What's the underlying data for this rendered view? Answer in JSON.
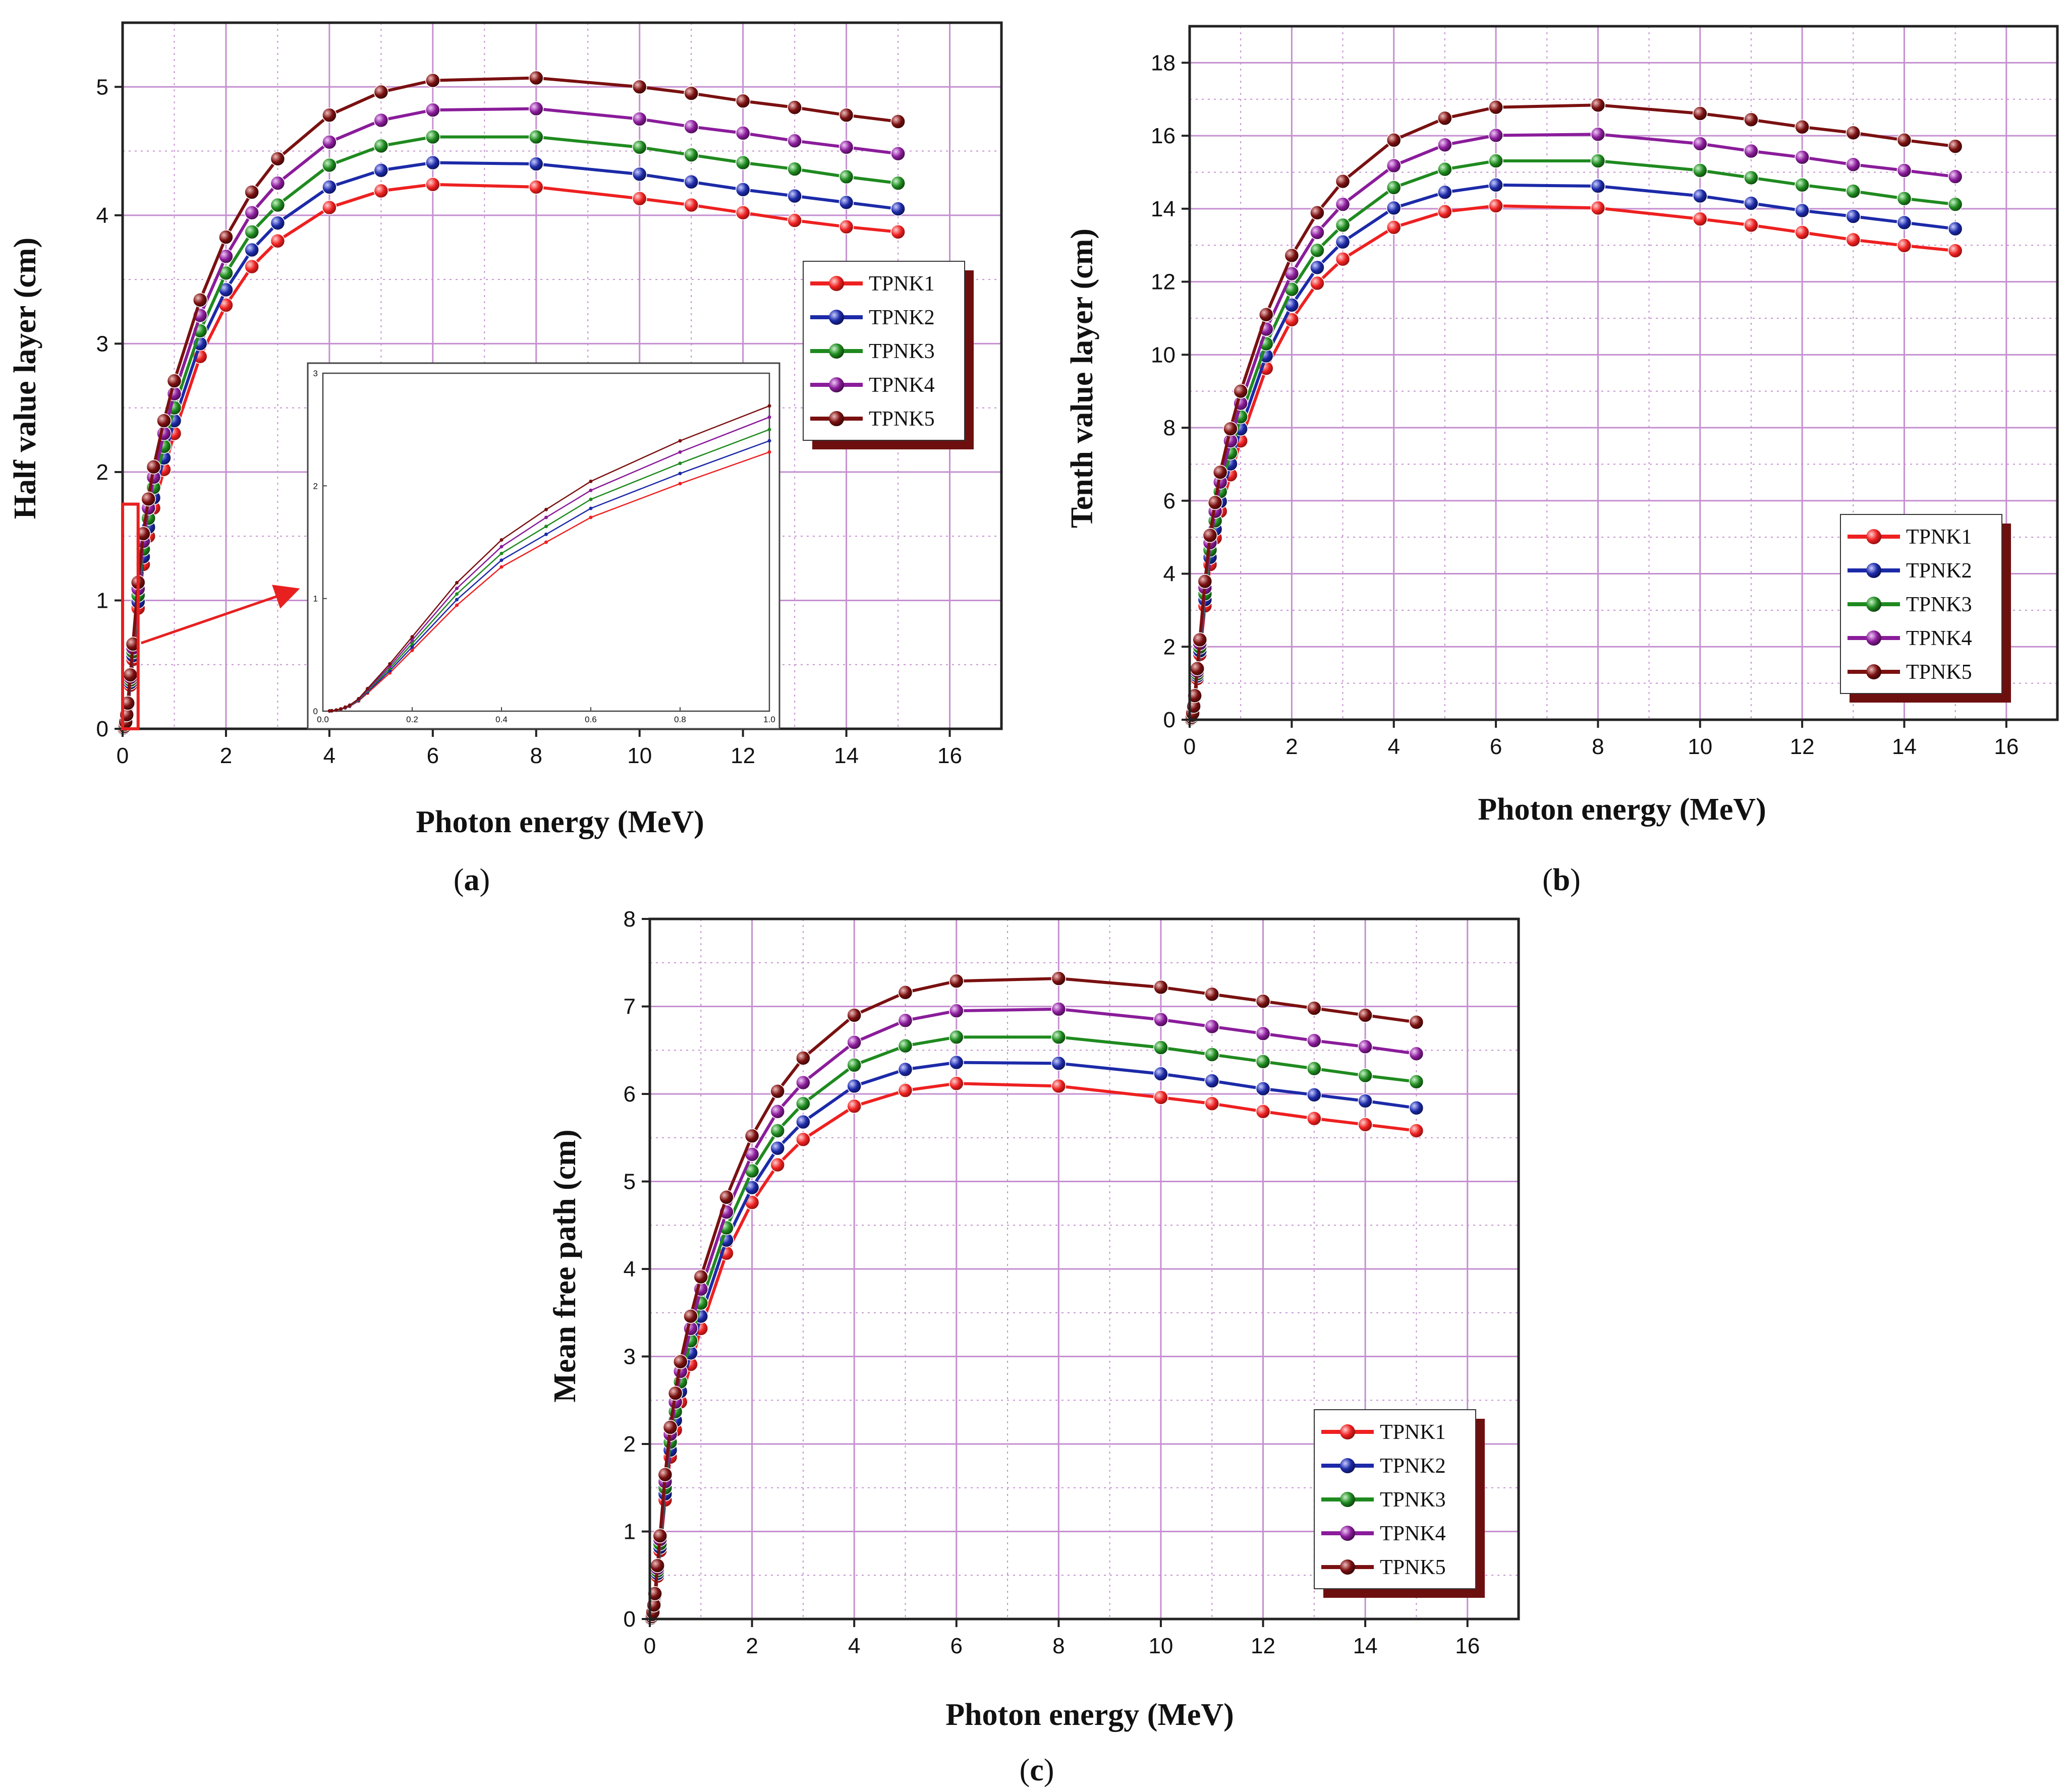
{
  "colors": {
    "TPNK1": "#ee2020",
    "TPNK2": "#1c2aa8",
    "TPNK3": "#1f8a1f",
    "TPNK4": "#8a1c9a",
    "TPNK5": "#7a1010",
    "grid": "#c58fd0",
    "highlight": "#e82020",
    "legend_shadow": "#6e0f0f"
  },
  "chart_data": [
    {
      "id": "a",
      "type": "line",
      "panel_label": "a",
      "xlabel": "Photon energy (MeV)",
      "ylabel": "Half value layer (cm)",
      "xlim": [
        0,
        17
      ],
      "ylim": [
        0,
        5.5
      ],
      "xticks": [
        0,
        2,
        4,
        6,
        8,
        10,
        12,
        14,
        16
      ],
      "yticks": [
        0,
        1,
        2,
        3,
        4,
        5
      ],
      "grid": true,
      "legend_position": "right-middle",
      "x": [
        0.015,
        0.02,
        0.03,
        0.04,
        0.05,
        0.06,
        0.08,
        0.1,
        0.15,
        0.2,
        0.3,
        0.4,
        0.5,
        0.6,
        0.8,
        1.0,
        1.5,
        2,
        2.5,
        3,
        4,
        5,
        6,
        8,
        10,
        11,
        12,
        13,
        14,
        15
      ],
      "series": [
        {
          "name": "TPNK1",
          "values": [
            0.0015,
            0.003,
            0.008,
            0.016,
            0.028,
            0.042,
            0.09,
            0.16,
            0.34,
            0.54,
            0.94,
            1.28,
            1.5,
            1.72,
            2.02,
            2.3,
            2.9,
            3.3,
            3.6,
            3.8,
            4.06,
            4.19,
            4.24,
            4.22,
            4.13,
            4.08,
            4.02,
            3.96,
            3.91,
            3.87
          ]
        },
        {
          "name": "TPNK2",
          "values": [
            0.0016,
            0.0032,
            0.0085,
            0.017,
            0.03,
            0.045,
            0.095,
            0.17,
            0.36,
            0.57,
            0.99,
            1.34,
            1.57,
            1.8,
            2.11,
            2.4,
            3.0,
            3.42,
            3.73,
            3.94,
            4.22,
            4.35,
            4.41,
            4.4,
            4.32,
            4.26,
            4.2,
            4.15,
            4.1,
            4.05
          ]
        },
        {
          "name": "TPNK3",
          "values": [
            0.0017,
            0.0034,
            0.009,
            0.018,
            0.032,
            0.048,
            0.1,
            0.18,
            0.38,
            0.6,
            1.04,
            1.4,
            1.64,
            1.88,
            2.2,
            2.5,
            3.1,
            3.55,
            3.87,
            4.08,
            4.39,
            4.54,
            4.61,
            4.61,
            4.53,
            4.47,
            4.41,
            4.36,
            4.3,
            4.25
          ]
        },
        {
          "name": "TPNK4",
          "values": [
            0.0018,
            0.0036,
            0.0095,
            0.019,
            0.034,
            0.05,
            0.105,
            0.19,
            0.4,
            0.63,
            1.09,
            1.46,
            1.72,
            1.96,
            2.3,
            2.61,
            3.22,
            3.68,
            4.02,
            4.25,
            4.57,
            4.74,
            4.82,
            4.83,
            4.75,
            4.69,
            4.64,
            4.58,
            4.53,
            4.48
          ]
        },
        {
          "name": "TPNK5",
          "values": [
            0.0019,
            0.0038,
            0.01,
            0.02,
            0.036,
            0.053,
            0.11,
            0.2,
            0.42,
            0.66,
            1.14,
            1.52,
            1.79,
            2.04,
            2.4,
            2.71,
            3.34,
            3.83,
            4.18,
            4.44,
            4.78,
            4.96,
            5.05,
            5.07,
            5.0,
            4.95,
            4.89,
            4.84,
            4.78,
            4.73
          ]
        }
      ],
      "inset": {
        "xlim": [
          0,
          1.0
        ],
        "ylim": [
          0,
          3
        ],
        "xtick_labels": [
          "0.0",
          "0.2",
          "0.4",
          "0.6",
          "0.8",
          "1.0"
        ],
        "ytick_labels": [
          "0",
          "1",
          "2",
          "3"
        ],
        "highlight_region": {
          "x": [
            0,
            0.3
          ],
          "y": [
            0,
            1.75
          ]
        }
      }
    },
    {
      "id": "b",
      "type": "line",
      "panel_label": "b",
      "xlabel": "Photon energy (MeV)",
      "ylabel": "Tenth value layer (cm)",
      "xlim": [
        0,
        17
      ],
      "ylim": [
        0,
        19
      ],
      "xticks": [
        0,
        2,
        4,
        6,
        8,
        10,
        12,
        14,
        16
      ],
      "yticks": [
        0,
        2,
        4,
        6,
        8,
        10,
        12,
        14,
        16,
        18
      ],
      "grid": true,
      "legend_position": "bottom-right",
      "x": [
        0.015,
        0.02,
        0.03,
        0.04,
        0.05,
        0.06,
        0.08,
        0.1,
        0.15,
        0.2,
        0.3,
        0.4,
        0.5,
        0.6,
        0.8,
        1.0,
        1.5,
        2,
        2.5,
        3,
        4,
        5,
        6,
        8,
        10,
        11,
        12,
        13,
        14,
        15
      ],
      "series": [
        {
          "name": "TPNK1",
          "values": [
            0.005,
            0.01,
            0.027,
            0.053,
            0.09,
            0.14,
            0.3,
            0.53,
            1.13,
            1.79,
            3.12,
            4.25,
            4.98,
            5.71,
            6.71,
            7.64,
            9.63,
            10.96,
            11.96,
            12.62,
            13.49,
            13.92,
            14.08,
            14.02,
            13.72,
            13.55,
            13.35,
            13.15,
            12.99,
            12.85
          ]
        },
        {
          "name": "TPNK2",
          "values": [
            0.005,
            0.011,
            0.028,
            0.056,
            0.1,
            0.15,
            0.32,
            0.56,
            1.2,
            1.89,
            3.29,
            4.45,
            5.22,
            5.98,
            7.01,
            7.97,
            9.97,
            11.36,
            12.39,
            13.09,
            14.02,
            14.45,
            14.65,
            14.62,
            14.35,
            14.15,
            13.95,
            13.79,
            13.62,
            13.45
          ]
        },
        {
          "name": "TPNK3",
          "values": [
            0.006,
            0.011,
            0.03,
            0.06,
            0.106,
            0.16,
            0.33,
            0.6,
            1.26,
            1.99,
            3.45,
            4.65,
            5.45,
            6.25,
            7.31,
            8.3,
            10.3,
            11.79,
            12.86,
            13.55,
            14.58,
            15.08,
            15.31,
            15.31,
            15.05,
            14.85,
            14.65,
            14.48,
            14.28,
            14.12
          ]
        },
        {
          "name": "TPNK4",
          "values": [
            0.006,
            0.012,
            0.032,
            0.063,
            0.113,
            0.17,
            0.35,
            0.63,
            1.33,
            2.09,
            3.62,
            4.85,
            5.71,
            6.51,
            7.64,
            8.67,
            10.7,
            12.22,
            13.35,
            14.12,
            15.18,
            15.75,
            16.01,
            16.04,
            15.78,
            15.58,
            15.41,
            15.21,
            15.05,
            14.88
          ]
        },
        {
          "name": "TPNK5",
          "values": [
            0.006,
            0.013,
            0.033,
            0.066,
            0.12,
            0.18,
            0.37,
            0.66,
            1.4,
            2.19,
            3.79,
            5.05,
            5.95,
            6.78,
            7.97,
            9.0,
            11.1,
            12.72,
            13.89,
            14.75,
            15.88,
            16.48,
            16.78,
            16.84,
            16.61,
            16.44,
            16.24,
            16.08,
            15.88,
            15.71
          ]
        }
      ]
    },
    {
      "id": "c",
      "type": "line",
      "panel_label": "c",
      "xlabel": "Photon energy (MeV)",
      "ylabel": "Mean free path (cm)",
      "xlim": [
        0,
        17
      ],
      "ylim": [
        0,
        8
      ],
      "xticks": [
        0,
        2,
        4,
        6,
        8,
        10,
        12,
        14,
        16
      ],
      "yticks": [
        0,
        1,
        2,
        3,
        4,
        5,
        6,
        7,
        8
      ],
      "grid": true,
      "legend_position": "bottom-right",
      "x": [
        0.015,
        0.02,
        0.03,
        0.04,
        0.05,
        0.06,
        0.08,
        0.1,
        0.15,
        0.2,
        0.3,
        0.4,
        0.5,
        0.6,
        0.8,
        1.0,
        1.5,
        2,
        2.5,
        3,
        4,
        5,
        6,
        8,
        10,
        11,
        12,
        13,
        14,
        15
      ],
      "series": [
        {
          "name": "TPNK1",
          "values": [
            0.002,
            0.004,
            0.012,
            0.023,
            0.04,
            0.06,
            0.13,
            0.23,
            0.49,
            0.78,
            1.36,
            1.85,
            2.16,
            2.48,
            2.91,
            3.32,
            4.18,
            4.76,
            5.19,
            5.48,
            5.86,
            6.04,
            6.12,
            6.09,
            5.96,
            5.89,
            5.8,
            5.72,
            5.65,
            5.58
          ]
        },
        {
          "name": "TPNK2",
          "values": [
            0.002,
            0.005,
            0.012,
            0.024,
            0.043,
            0.065,
            0.14,
            0.24,
            0.52,
            0.82,
            1.43,
            1.93,
            2.27,
            2.6,
            3.04,
            3.46,
            4.33,
            4.93,
            5.38,
            5.68,
            6.09,
            6.28,
            6.36,
            6.35,
            6.23,
            6.15,
            6.06,
            5.99,
            5.92,
            5.84
          ]
        },
        {
          "name": "TPNK3",
          "values": [
            0.0025,
            0.005,
            0.013,
            0.026,
            0.046,
            0.069,
            0.145,
            0.26,
            0.55,
            0.86,
            1.5,
            2.02,
            2.37,
            2.71,
            3.18,
            3.61,
            4.47,
            5.12,
            5.58,
            5.89,
            6.33,
            6.55,
            6.65,
            6.65,
            6.53,
            6.45,
            6.37,
            6.29,
            6.21,
            6.14
          ]
        },
        {
          "name": "TPNK4",
          "values": [
            0.0026,
            0.005,
            0.014,
            0.027,
            0.049,
            0.073,
            0.15,
            0.27,
            0.58,
            0.91,
            1.57,
            2.11,
            2.48,
            2.83,
            3.32,
            3.77,
            4.65,
            5.31,
            5.8,
            6.13,
            6.59,
            6.84,
            6.95,
            6.97,
            6.85,
            6.77,
            6.69,
            6.61,
            6.54,
            6.46
          ]
        },
        {
          "name": "TPNK5",
          "values": [
            0.0027,
            0.006,
            0.014,
            0.029,
            0.052,
            0.078,
            0.16,
            0.29,
            0.61,
            0.95,
            1.65,
            2.19,
            2.58,
            2.94,
            3.46,
            3.91,
            4.82,
            5.52,
            6.03,
            6.41,
            6.9,
            7.16,
            7.29,
            7.32,
            7.22,
            7.14,
            7.06,
            6.98,
            6.9,
            6.82
          ]
        }
      ]
    }
  ]
}
